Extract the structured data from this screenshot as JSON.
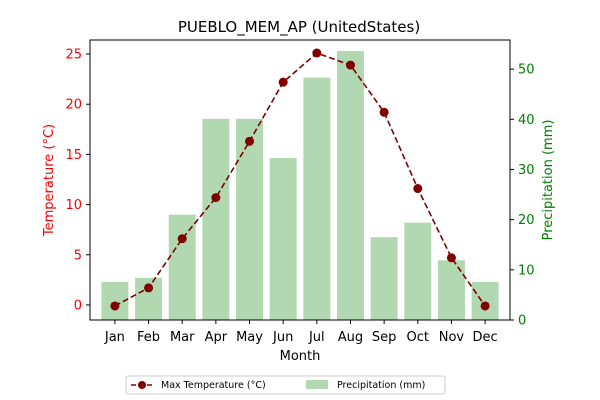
{
  "chart_data": {
    "type": "bar",
    "title": "PUEBLO_MEM_AP (UnitedStates)",
    "xlabel": "Month",
    "ylabel_left": "Temperature (°C)",
    "ylabel_right": "Precipitation (mm)",
    "categories": [
      "Jan",
      "Feb",
      "Mar",
      "Apr",
      "May",
      "Jun",
      "Jul",
      "Aug",
      "Sep",
      "Oct",
      "Nov",
      "Dec"
    ],
    "series": [
      {
        "name": "Max Temperature (°C)",
        "type": "line",
        "axis": "left",
        "color": "#800000",
        "values": [
          -0.1,
          1.7,
          6.6,
          10.7,
          16.3,
          22.2,
          25.1,
          23.9,
          19.2,
          11.6,
          4.7,
          -0.1
        ]
      },
      {
        "name": "Precipitation (mm)",
        "type": "bar",
        "axis": "right",
        "color": "#b1d8b1",
        "values": [
          7.6,
          8.4,
          21.0,
          40.1,
          40.1,
          32.3,
          48.3,
          53.6,
          16.5,
          19.4,
          11.9,
          7.6
        ]
      }
    ],
    "ylim_left": [
      -1.5,
      26.4
    ],
    "ylim_right": [
      0,
      55.8
    ],
    "yticks_left": [
      "0",
      "5",
      "10",
      "15",
      "20",
      "25"
    ],
    "yticks_right": [
      "0",
      "10",
      "20",
      "30",
      "40",
      "50"
    ],
    "left_axis_color": "#ff0000",
    "right_axis_color": "#008000",
    "grid": false,
    "legend": "bottom-center"
  }
}
